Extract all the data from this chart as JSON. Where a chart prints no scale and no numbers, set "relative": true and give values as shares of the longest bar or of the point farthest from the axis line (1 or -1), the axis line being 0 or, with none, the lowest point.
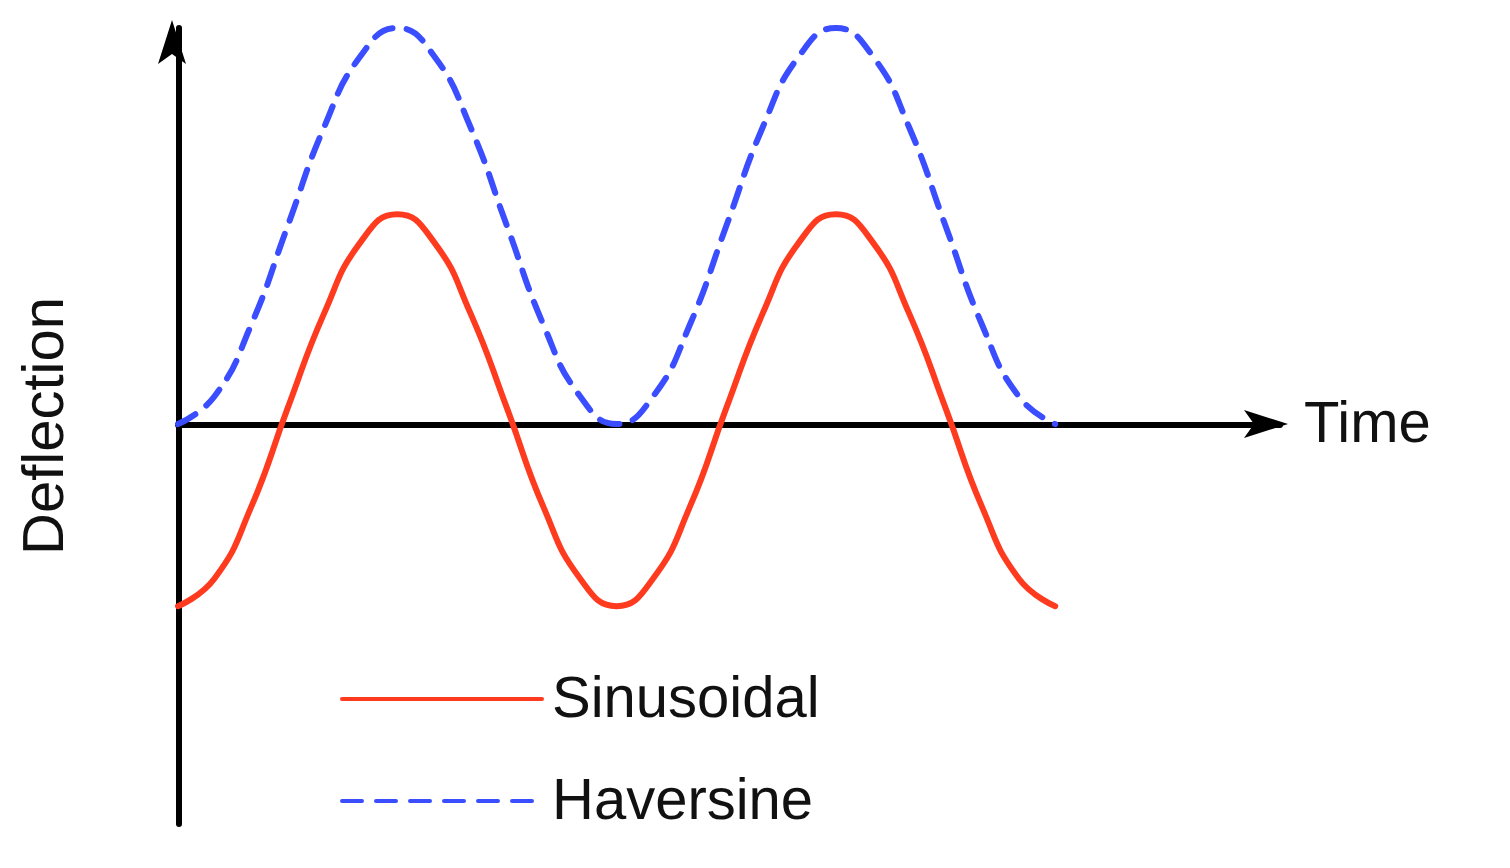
{
  "chart_data": {
    "type": "line",
    "relative": true,
    "xlabel": "Time",
    "ylabel": "Deflection",
    "legend": "bottom",
    "marker": "none",
    "categories": [
      null,
      null,
      null,
      null,
      null,
      null,
      null,
      null,
      null,
      null,
      null,
      null,
      null,
      null,
      null,
      null,
      null,
      null,
      null,
      null,
      null,
      null,
      null,
      null,
      null
    ],
    "series": [
      {
        "name": "Sinusoidal",
        "color": "#ff3b1f",
        "line_style": "solid",
        "values": [
          -0.46,
          -0.39,
          -0.21,
          0.04,
          0.28,
          0.46,
          0.53,
          0.46,
          0.28,
          0.04,
          -0.21,
          -0.39,
          -0.46,
          -0.39,
          -0.21,
          0.04,
          0.28,
          0.46,
          0.53,
          0.46,
          0.28,
          0.04,
          -0.21,
          -0.39,
          -0.46
        ]
      },
      {
        "name": "Haversine",
        "color": "#3a4dff",
        "line_style": "dashed",
        "values": [
          0,
          0.07,
          0.25,
          0.5,
          0.75,
          0.93,
          1,
          0.93,
          0.75,
          0.5,
          0.25,
          0.07,
          0,
          0.07,
          0.25,
          0.5,
          0.75,
          0.93,
          1,
          0.93,
          0.75,
          0.5,
          0.25,
          0.07,
          0
        ]
      }
    ]
  }
}
